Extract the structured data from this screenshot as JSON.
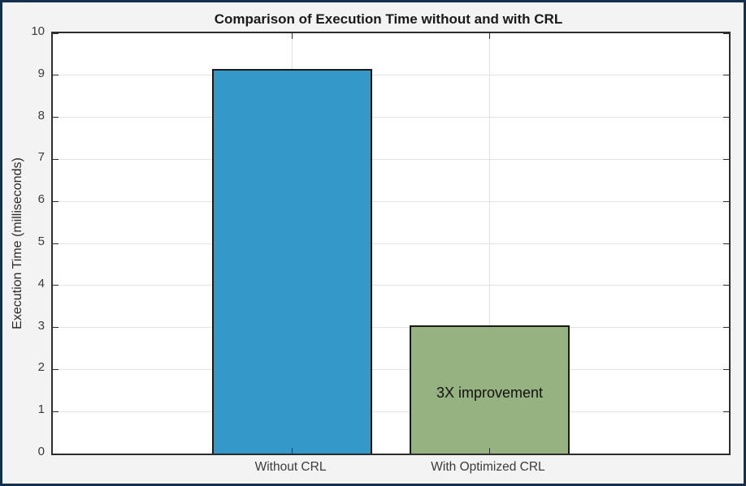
{
  "window": {
    "background": "#f3f3f3",
    "frame_color": "#14304d"
  },
  "chart_data": {
    "type": "bar",
    "title": "Comparison of Execution Time without and with CRL",
    "xlabel": "",
    "ylabel": "Execution Time (milliseconds)",
    "categories": [
      "Without CRL",
      "With Optimized CRL"
    ],
    "values": [
      9.15,
      3.05
    ],
    "bar_colors": [
      "#3498c8",
      "#96b280"
    ],
    "bar_edge_color": "#1a1a1a",
    "ylim": [
      0,
      10
    ],
    "yticks": [
      0,
      1,
      2,
      3,
      4,
      5,
      6,
      7,
      8,
      9,
      10
    ],
    "grid": true,
    "grid_color": "#e2e2e2",
    "tick_direction": "in",
    "box": true,
    "legend": null,
    "annotations": [
      {
        "text": "3X improvement",
        "bar_index": 1,
        "y_value": 1.45
      }
    ],
    "layout": {
      "bar_centers_pct": [
        35.4,
        64.6
      ],
      "bar_width_pct": 23.7
    }
  }
}
